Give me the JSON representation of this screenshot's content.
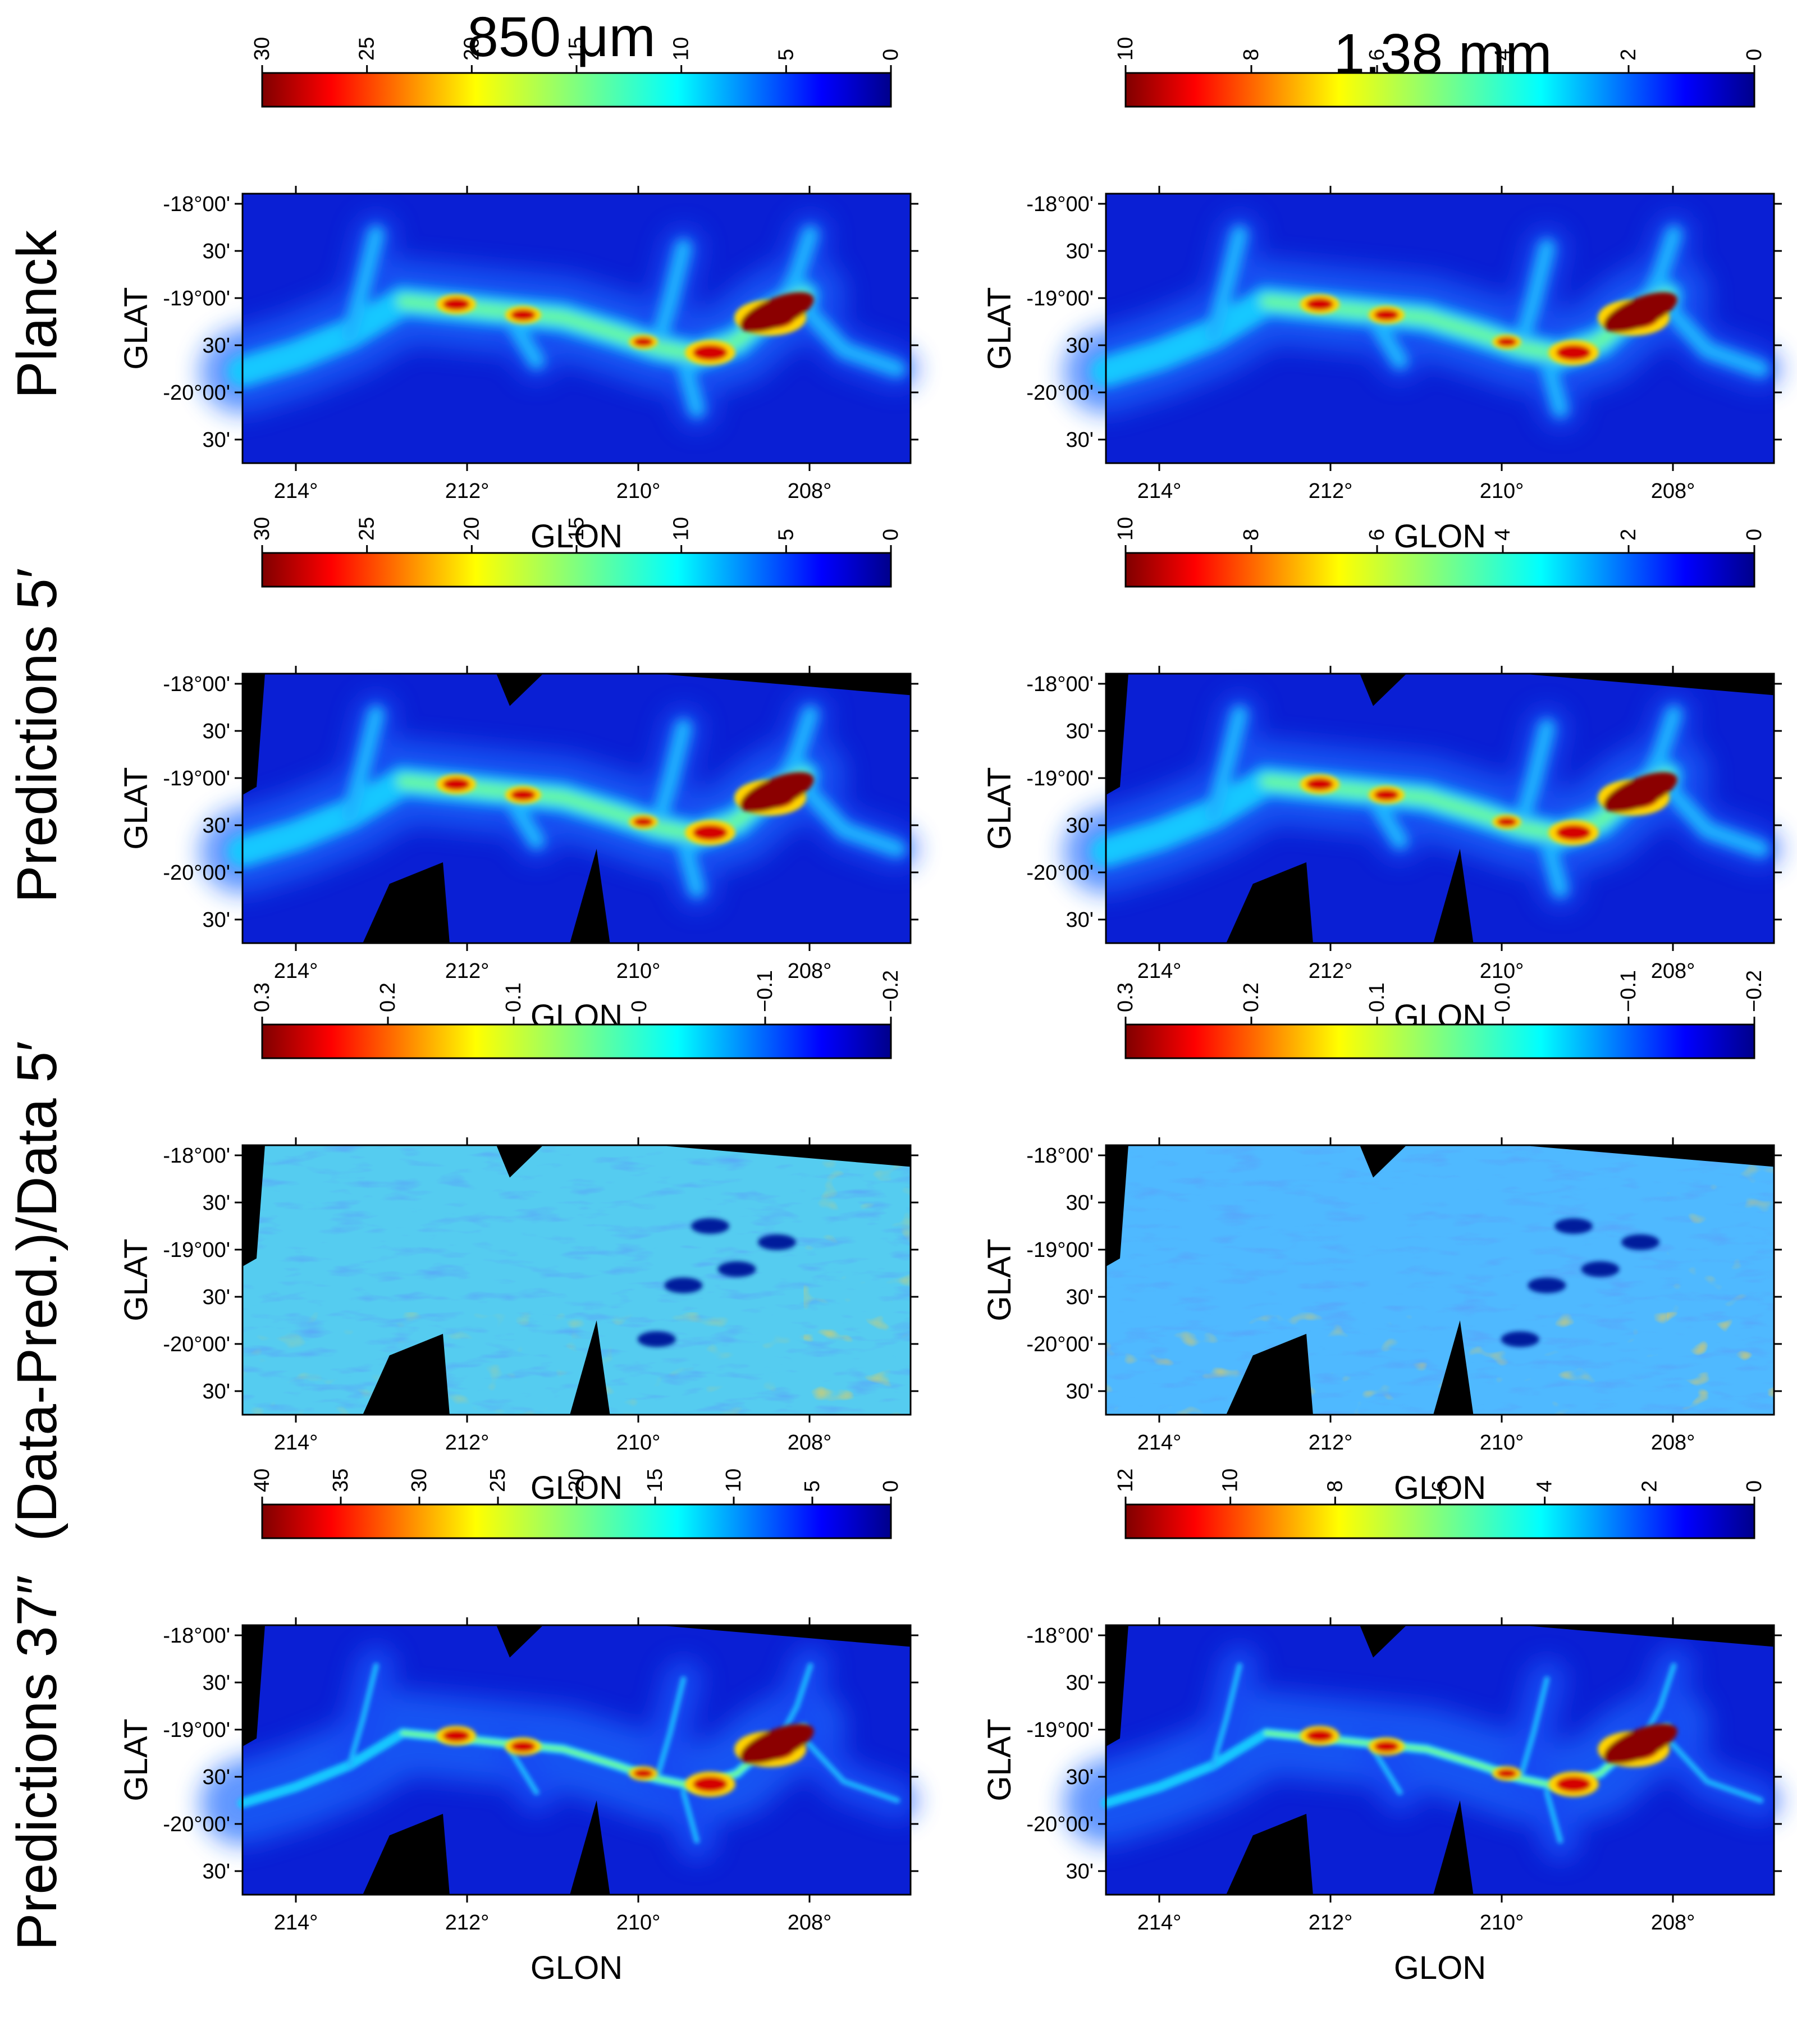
{
  "columns": [
    "850 μm",
    "1.38 mm"
  ],
  "rows": [
    "Planck",
    "Predictions 5′",
    "(Data-Pred.)/Data 5′",
    "Predictions 37″"
  ],
  "axes": {
    "xlabel": "GLON",
    "ylabel": "GLAT",
    "xticks": [
      "214°",
      "212°",
      "210°",
      "208°"
    ],
    "yticks": [
      "-18°00'",
      "30'",
      "-19°00'",
      "30'",
      "-20°00'",
      "30'"
    ]
  },
  "colormap": "jet",
  "colors": {
    "background": "#ffffff",
    "mask": "#000000",
    "low": "#00008b",
    "high": "#800000"
  },
  "panels": [
    {
      "row": 0,
      "col": 0,
      "label": "Planck 850 μm",
      "colorbar": {
        "ticks": [
          "30",
          "25",
          "20",
          "15",
          "10",
          "5",
          "0"
        ],
        "vmin": 0,
        "vmax": 30
      },
      "map": "intensity",
      "mask": "none"
    },
    {
      "row": 0,
      "col": 1,
      "label": "Planck 1.38 mm",
      "colorbar": {
        "ticks": [
          "10",
          "8",
          "6",
          "4",
          "2",
          "0"
        ],
        "vmin": 0,
        "vmax": 10
      },
      "map": "intensity",
      "mask": "none"
    },
    {
      "row": 1,
      "col": 0,
      "label": "Predictions 5′ 850 μm",
      "colorbar": {
        "ticks": [
          "30",
          "25",
          "20",
          "15",
          "10",
          "5",
          "0"
        ],
        "vmin": 0,
        "vmax": 30
      },
      "map": "intensity",
      "mask": "footprint"
    },
    {
      "row": 1,
      "col": 1,
      "label": "Predictions 5′ 1.38 mm",
      "colorbar": {
        "ticks": [
          "10",
          "8",
          "6",
          "4",
          "2",
          "0"
        ],
        "vmin": 0,
        "vmax": 10
      },
      "map": "intensity",
      "mask": "footprint"
    },
    {
      "row": 2,
      "col": 0,
      "label": "(Data-Pred.)/Data 5′ 850 μm",
      "colorbar": {
        "ticks": [
          "0.3",
          "0.2",
          "0.1",
          "0",
          "−0.1",
          "−0.2"
        ],
        "vmin": -0.2,
        "vmax": 0.3
      },
      "map": "residual",
      "mask": "footprint"
    },
    {
      "row": 2,
      "col": 1,
      "label": "(Data-Pred.)/Data 5′ 1.38 mm",
      "colorbar": {
        "ticks": [
          "0.3",
          "0.2",
          "0.1",
          "0.0",
          "−0.1",
          "−0.2"
        ],
        "vmin": -0.2,
        "vmax": 0.3
      },
      "map": "residual",
      "mask": "footprint"
    },
    {
      "row": 3,
      "col": 0,
      "label": "Predictions 37″ 850 μm",
      "colorbar": {
        "ticks": [
          "40",
          "35",
          "30",
          "25",
          "20",
          "15",
          "10",
          "5",
          "0"
        ],
        "vmin": 0,
        "vmax": 40
      },
      "map": "filament",
      "mask": "footprint"
    },
    {
      "row": 3,
      "col": 1,
      "label": "Predictions 37″ 1.38 mm",
      "colorbar": {
        "ticks": [
          "12",
          "10",
          "8",
          "6",
          "4",
          "2",
          "0"
        ],
        "vmin": 0,
        "vmax": 12
      },
      "map": "filament",
      "mask": "footprint"
    }
  ]
}
